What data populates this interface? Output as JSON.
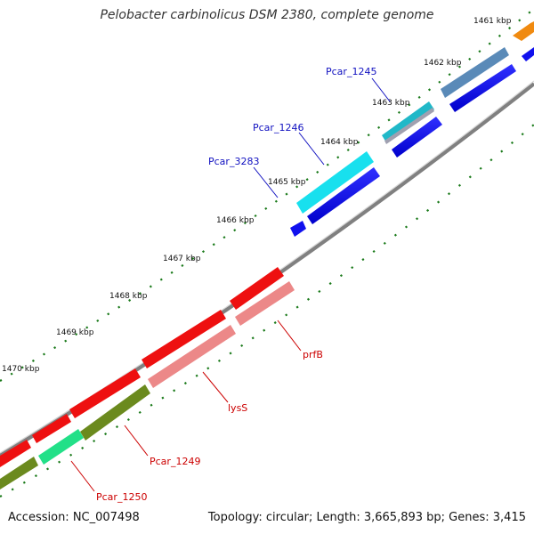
{
  "title": "Pelobacter carbinolicus DSM 2380, complete genome",
  "footer": {
    "accession": "Accession: NC_007498",
    "summary": "Topology: circular; Length: 3,665,893 bp; Genes: 3,415"
  },
  "colors": {
    "backbone": "#808080",
    "tick": "#1a7a1a",
    "forward_label": "#1010c0",
    "reverse_label": "#cc0000"
  },
  "kbp_ticks": [
    {
      "label": "1461 kbp"
    },
    {
      "label": "1462 kbp"
    },
    {
      "label": "1463 kbp"
    },
    {
      "label": "1464 kbp"
    },
    {
      "label": "1465 kbp"
    },
    {
      "label": "1466 kbp"
    },
    {
      "label": "1467 kbp"
    },
    {
      "label": "1468 kbp"
    },
    {
      "label": "1469 kbp"
    },
    {
      "label": "1470 kbp"
    }
  ],
  "gene_labels": [
    {
      "name": "Pcar_1245",
      "strand": "forward"
    },
    {
      "name": "Pcar_1246",
      "strand": "forward"
    },
    {
      "name": "Pcar_3283",
      "strand": "forward"
    },
    {
      "name": "prfB",
      "strand": "reverse"
    },
    {
      "name": "lysS",
      "strand": "reverse"
    },
    {
      "name": "Pcar_1249",
      "strand": "reverse"
    },
    {
      "name": "Pcar_1250",
      "strand": "reverse"
    }
  ]
}
